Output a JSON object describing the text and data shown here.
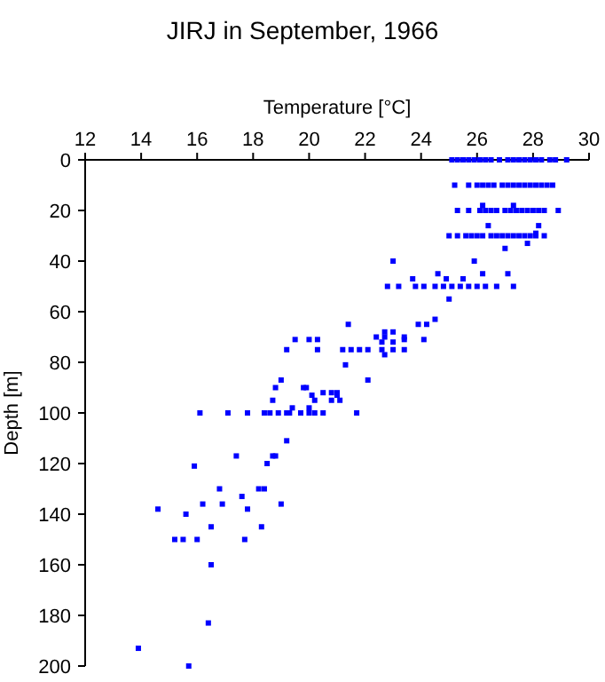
{
  "chart_data": {
    "type": "scatter",
    "title": "JIRJ in September, 1966",
    "xlabel": "Temperature [°C]",
    "ylabel": "Depth [m]",
    "xlim": [
      12,
      30
    ],
    "xticks": [
      12,
      14,
      16,
      18,
      20,
      22,
      24,
      26,
      28,
      30
    ],
    "ylim": [
      200,
      0
    ],
    "yticks": [
      0,
      20,
      40,
      60,
      80,
      100,
      120,
      140,
      160,
      180,
      200
    ],
    "grid": false,
    "marker": "square",
    "series": [
      {
        "color": "#0000ff",
        "x": [
          25.1,
          25.3,
          25.5,
          25.7,
          25.9,
          26.1,
          26.3,
          26.5,
          26.8,
          27.1,
          27.3,
          27.5,
          27.7,
          27.9,
          28.1,
          28.3,
          28.6,
          28.8,
          29.2,
          25.2,
          25.7,
          26.0,
          26.2,
          26.4,
          26.6,
          26.9,
          27.1,
          27.3,
          27.5,
          27.7,
          27.9,
          28.1,
          28.3,
          28.5,
          28.7,
          25.3,
          25.7,
          26.1,
          26.3,
          26.5,
          26.7,
          27.0,
          27.2,
          27.4,
          27.6,
          27.8,
          28.0,
          28.2,
          28.4,
          28.9,
          26.2,
          27.3,
          25.0,
          25.3,
          25.6,
          25.8,
          26.0,
          26.2,
          26.5,
          26.7,
          26.9,
          27.1,
          27.3,
          27.5,
          27.7,
          27.9,
          28.1,
          28.4,
          26.4,
          28.2,
          28.1,
          27.8,
          27.0,
          23.0,
          25.9,
          24.6,
          26.2,
          27.1,
          23.7,
          24.9,
          25.5,
          22.8,
          23.2,
          23.8,
          24.1,
          24.5,
          24.8,
          25.1,
          25.4,
          25.7,
          26.0,
          26.3,
          26.7,
          27.3,
          25.0,
          24.5,
          21.4,
          23.9,
          24.2,
          22.7,
          23.0,
          22.4,
          22.7,
          23.4,
          20.3,
          19.5,
          20.0,
          23.4,
          24.1,
          22.6,
          23.0,
          19.2,
          20.3,
          21.2,
          21.5,
          21.8,
          22.1,
          22.6,
          23.0,
          23.4,
          22.7,
          21.3,
          19.0,
          22.1,
          18.8,
          19.8,
          19.9,
          20.5,
          20.8,
          21.0,
          20.1,
          21.0,
          18.7,
          20.2,
          20.8,
          21.1,
          20.0,
          19.4,
          16.1,
          17.1,
          17.8,
          18.4,
          18.6,
          18.9,
          19.2,
          19.3,
          19.7,
          20.0,
          20.2,
          20.5,
          21.7,
          19.2,
          17.4,
          18.7,
          18.8,
          18.5,
          15.9,
          16.8,
          18.2,
          18.4,
          17.6,
          16.2,
          16.9,
          19.0,
          14.6,
          17.8,
          15.6,
          16.5,
          18.3,
          15.2,
          15.5,
          16.0,
          17.7,
          16.5,
          16.4,
          13.9,
          15.7
        ],
        "values": [
          0,
          0,
          0,
          0,
          0,
          0,
          0,
          0,
          0,
          0,
          0,
          0,
          0,
          0,
          0,
          0,
          0,
          0,
          0,
          10,
          10,
          10,
          10,
          10,
          10,
          10,
          10,
          10,
          10,
          10,
          10,
          10,
          10,
          10,
          10,
          20,
          20,
          20,
          20,
          20,
          20,
          20,
          20,
          20,
          20,
          20,
          20,
          20,
          20,
          20,
          18,
          18,
          30,
          30,
          30,
          30,
          30,
          30,
          30,
          30,
          30,
          30,
          30,
          30,
          30,
          30,
          30,
          30,
          26,
          26,
          29,
          33,
          35,
          40,
          40,
          45,
          45,
          45,
          47,
          47,
          47,
          50,
          50,
          50,
          50,
          50,
          50,
          50,
          50,
          50,
          50,
          50,
          50,
          50,
          55,
          63,
          65,
          65,
          65,
          68,
          68,
          70,
          70,
          70,
          71,
          71,
          71,
          71,
          71,
          72,
          72,
          75,
          75,
          75,
          75,
          75,
          75,
          75,
          75,
          75,
          77,
          81,
          87,
          87,
          90,
          90,
          90,
          92,
          92,
          92,
          93,
          93,
          95,
          95,
          95,
          95,
          98,
          98,
          100,
          100,
          100,
          100,
          100,
          100,
          100,
          100,
          100,
          100,
          100,
          100,
          100,
          111,
          117,
          117,
          117,
          120,
          121,
          130,
          130,
          130,
          133,
          136,
          136,
          136,
          138,
          138,
          140,
          145,
          145,
          150,
          150,
          150,
          150,
          160,
          183,
          193,
          200
        ]
      }
    ]
  }
}
